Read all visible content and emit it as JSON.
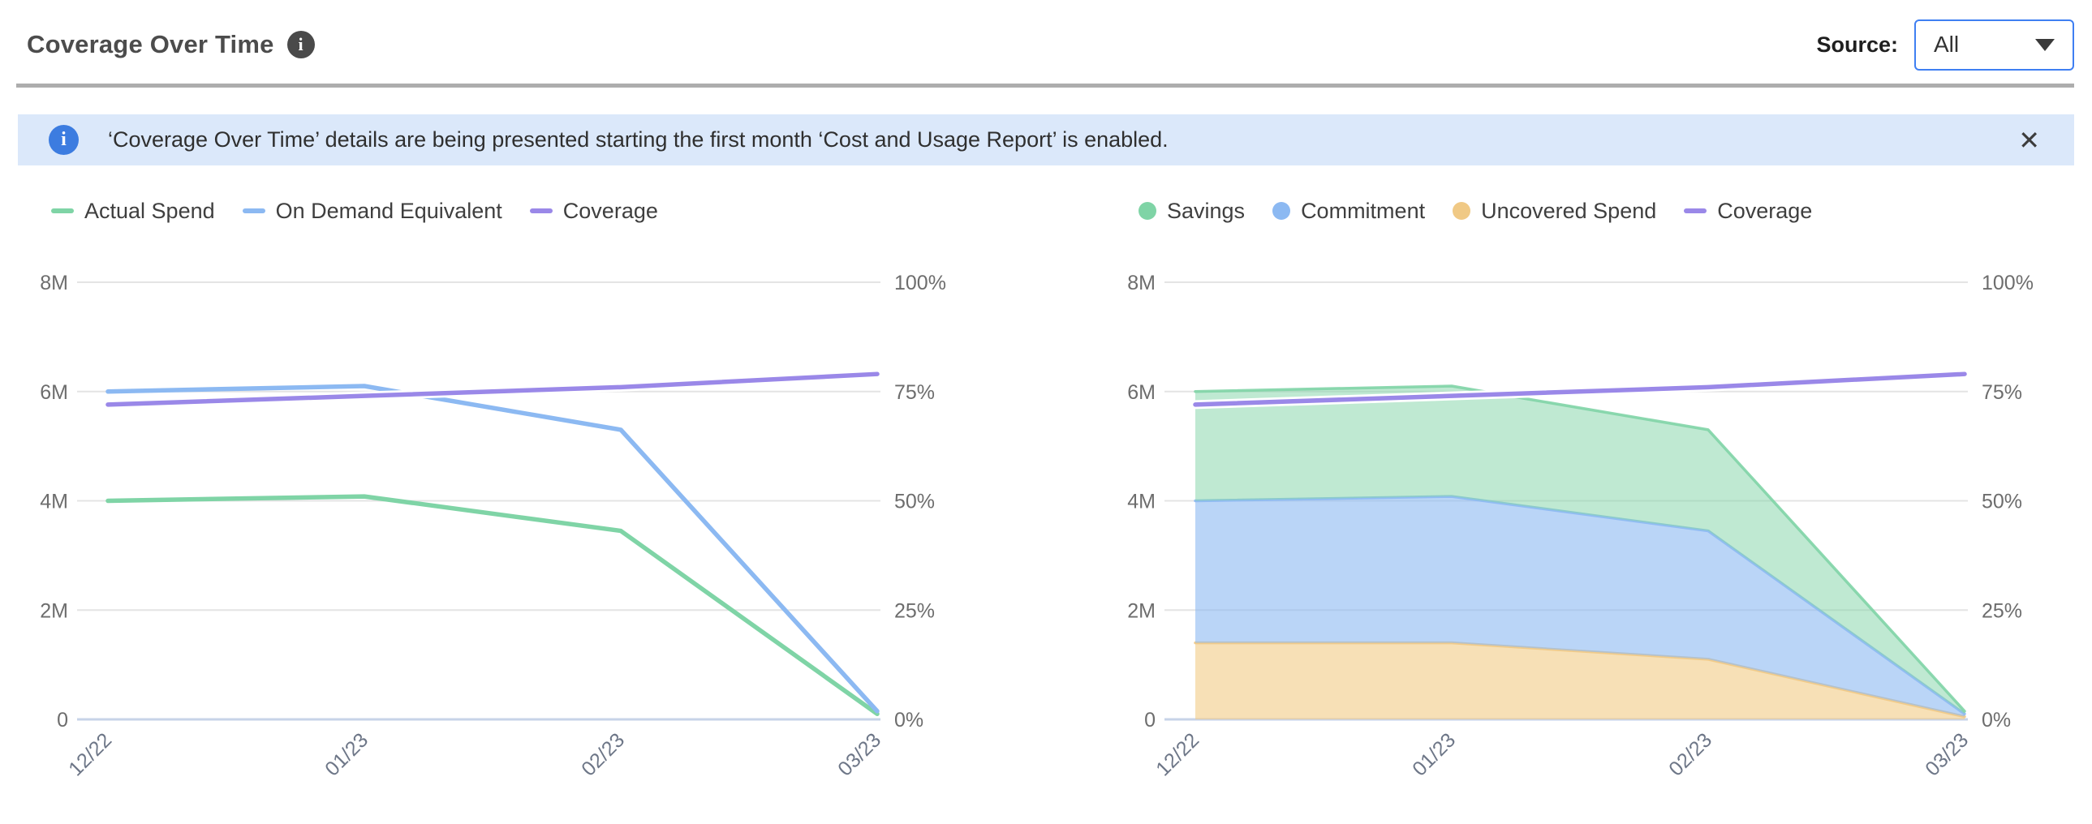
{
  "header": {
    "title": "Coverage Over Time",
    "info_icon": "info-icon",
    "source_label": "Source:",
    "source_value": "All"
  },
  "banner": {
    "text": "‘Coverage Over Time’ details are being presented starting the first month ‘Cost and Usage Report’ is enabled.",
    "close_glyph": "✕"
  },
  "colors": {
    "accent_blue": "#3f7ff2",
    "banner_bg": "#dbe8fa",
    "banner_icon": "#3c7ce0",
    "grid": "#e4e4e4",
    "baseline": "#c7d3e8",
    "tick_text": "#6d6d6d",
    "xlabel_text": "#6d7687"
  },
  "chart_data": [
    {
      "type": "line",
      "title": "Coverage Over Time — spend lines",
      "categories": [
        "12/22",
        "01/23",
        "02/23",
        "03/23"
      ],
      "unit": "millions USD (left axis), percent (right axis)",
      "left_axis": {
        "ticks": [
          "0",
          "2M",
          "4M",
          "6M",
          "8M"
        ],
        "max": 8
      },
      "right_axis": {
        "ticks": [
          "0%",
          "25%",
          "50%",
          "75%",
          "100%"
        ],
        "max": 100
      },
      "grid": true,
      "legend_position": "top-left",
      "series": [
        {
          "name": "Actual Spend",
          "kind": "line",
          "axis": "left",
          "swatch": "line",
          "color": "#7fd4a6",
          "values": [
            4.0,
            4.08,
            3.45,
            0.1
          ]
        },
        {
          "name": "On Demand Equivalent",
          "kind": "line",
          "axis": "left",
          "swatch": "line",
          "color": "#8cb9f2",
          "values": [
            6.0,
            6.1,
            5.3,
            0.15
          ]
        },
        {
          "name": "Coverage",
          "kind": "line",
          "axis": "right",
          "swatch": "line",
          "color": "#9a88e8",
          "halo": "#ffffff",
          "values": [
            72,
            74,
            76,
            79
          ]
        }
      ]
    },
    {
      "type": "area",
      "title": "Coverage Over Time — stacked spend breakdown",
      "categories": [
        "12/22",
        "01/23",
        "02/23",
        "03/23"
      ],
      "unit": "millions USD (left axis), percent (right axis)",
      "left_axis": {
        "ticks": [
          "0",
          "2M",
          "4M",
          "6M",
          "8M"
        ],
        "max": 8
      },
      "right_axis": {
        "ticks": [
          "0%",
          "25%",
          "50%",
          "75%",
          "100%"
        ],
        "max": 100
      },
      "grid": true,
      "legend_position": "top-left",
      "series": [
        {
          "name": "Savings",
          "kind": "area",
          "axis": "left",
          "swatch": "circle",
          "stack_index": 2,
          "color": "#7fd4a6",
          "fill": "rgba(127,212,166,0.5)",
          "values": [
            2.0,
            2.02,
            1.85,
            0.05
          ]
        },
        {
          "name": "Commitment",
          "kind": "area",
          "axis": "left",
          "swatch": "circle",
          "stack_index": 1,
          "color": "#8cb9f2",
          "fill": "rgba(140,185,242,0.6)",
          "values": [
            2.6,
            2.68,
            2.35,
            0.05
          ]
        },
        {
          "name": "Uncovered Spend",
          "kind": "area",
          "axis": "left",
          "swatch": "circle",
          "stack_index": 0,
          "color": "#f0c985",
          "fill": "rgba(241,204,133,0.6)",
          "values": [
            1.4,
            1.4,
            1.1,
            0.05
          ]
        },
        {
          "name": "Coverage",
          "kind": "line",
          "axis": "right",
          "swatch": "line",
          "color": "#9a88e8",
          "halo": "#ffffff",
          "values": [
            72,
            74,
            76,
            79
          ]
        }
      ]
    }
  ]
}
